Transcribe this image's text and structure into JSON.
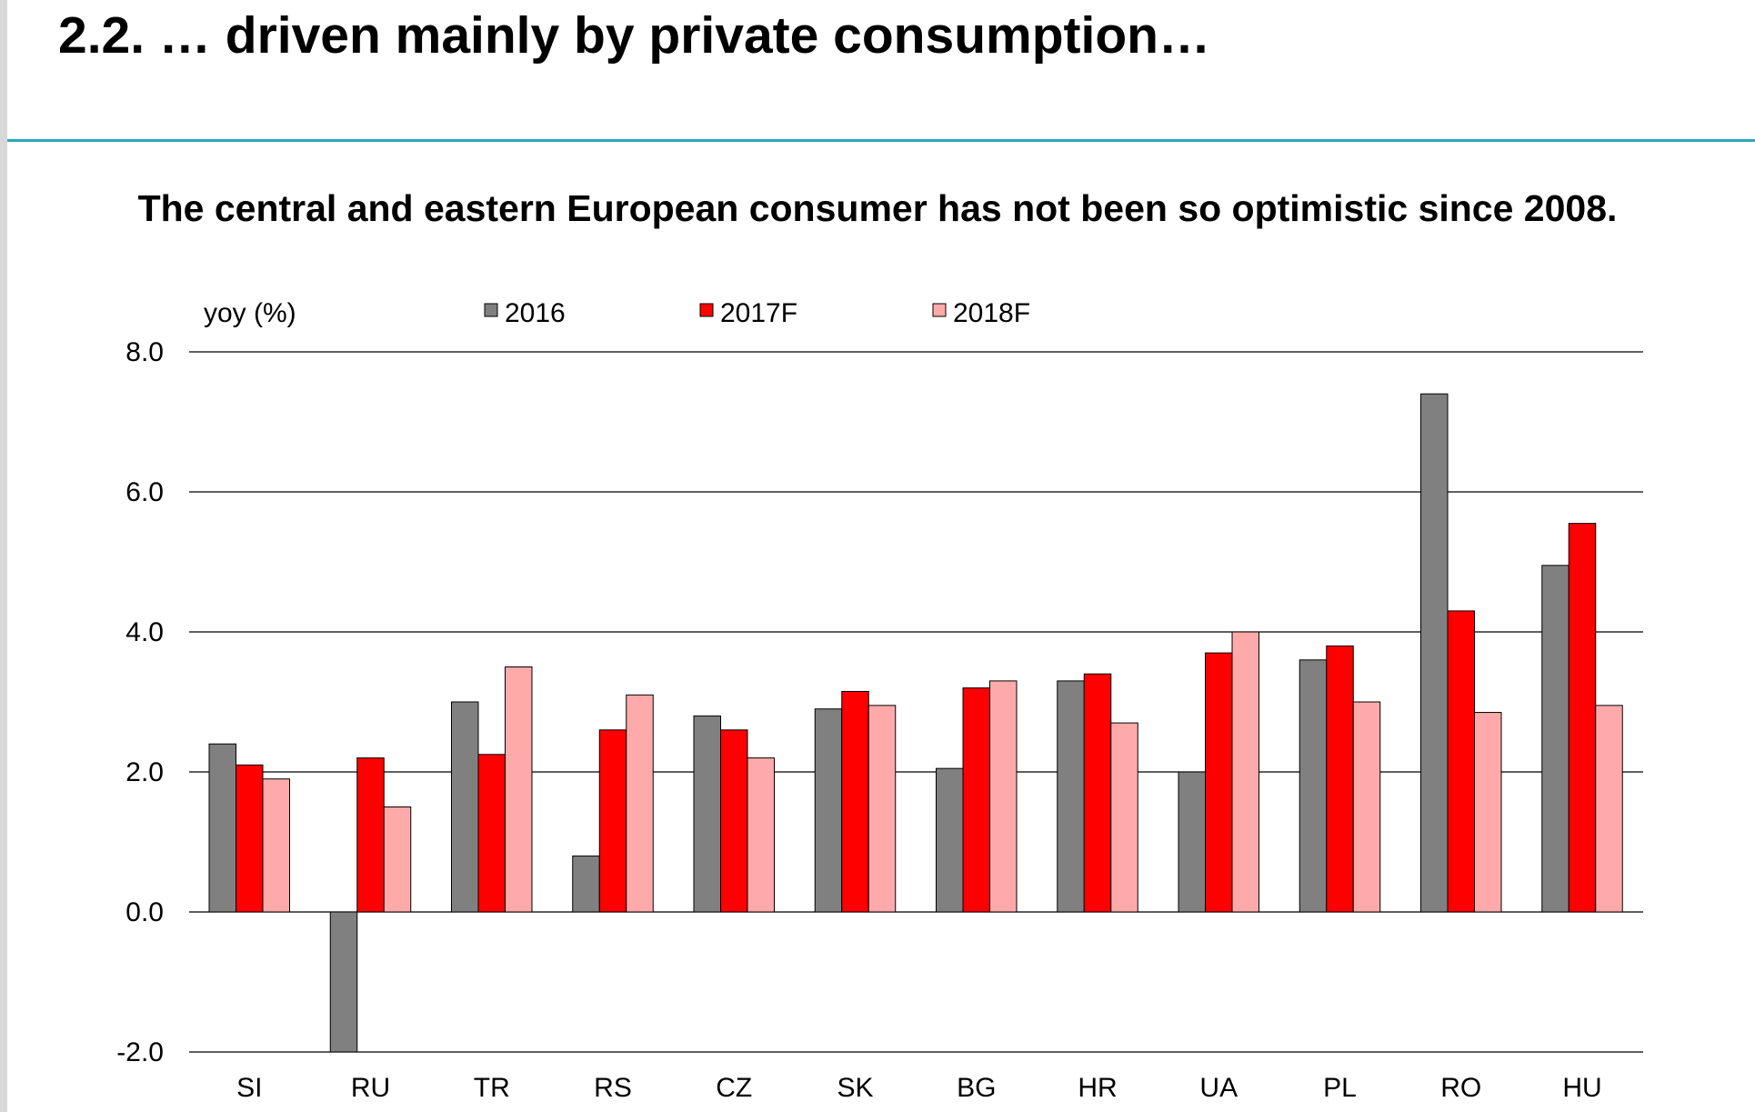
{
  "slide": {
    "title": "2.2. … driven mainly by private consumption…",
    "subtitle": "The central and eastern European consumer has not been so optimistic since 2008."
  },
  "colors": {
    "accent_rule": "#2aa8b8",
    "series_2016": "#808080",
    "series_2017F": "#ff0000",
    "series_2018F": "#ffaaaa"
  },
  "chart_data": {
    "type": "bar",
    "ylabel": "yoy (%)",
    "ylim": [
      -2.0,
      8.0
    ],
    "yticks": [
      "8.0",
      "6.0",
      "4.0",
      "2.0",
      "0.0",
      "-2.0"
    ],
    "ytick_values": [
      8.0,
      6.0,
      4.0,
      2.0,
      0.0,
      -2.0
    ],
    "grid": true,
    "legend_position": "top",
    "categories": [
      "SI",
      "RU",
      "TR",
      "RS",
      "CZ",
      "SK",
      "BG",
      "HR",
      "UA",
      "PL",
      "RO",
      "HU"
    ],
    "series": [
      {
        "name": "2016",
        "color": "#808080",
        "values": [
          2.4,
          -2.0,
          3.0,
          0.8,
          2.8,
          2.9,
          2.05,
          3.3,
          2.0,
          3.6,
          7.4,
          4.95
        ]
      },
      {
        "name": "2017F",
        "color": "#ff0000",
        "values": [
          2.1,
          2.2,
          2.25,
          2.6,
          2.6,
          3.15,
          3.2,
          3.4,
          3.7,
          3.8,
          4.3,
          5.55
        ]
      },
      {
        "name": "2018F",
        "color": "#ffaaaa",
        "values": [
          1.9,
          1.5,
          3.5,
          3.1,
          2.2,
          2.95,
          3.3,
          2.7,
          4.0,
          3.0,
          2.85,
          2.95
        ]
      }
    ]
  }
}
